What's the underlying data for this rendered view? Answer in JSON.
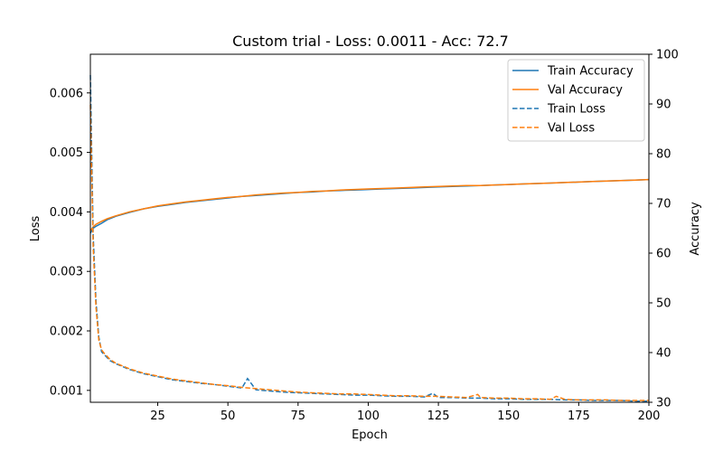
{
  "chart_data": {
    "type": "line",
    "title": "Custom trial - Loss: 0.0011 - Acc: 72.7",
    "xlabel": "Epoch",
    "ylabel_left": "Loss",
    "ylabel_right": "Accuracy",
    "xlim": [
      1,
      200
    ],
    "ylim_left": [
      0.0008,
      0.00665
    ],
    "ylim_right": [
      30,
      100
    ],
    "xticks": [
      25,
      50,
      75,
      100,
      125,
      150,
      175,
      200
    ],
    "yticks_left": [
      0.001,
      0.002,
      0.003,
      0.004,
      0.005,
      0.006
    ],
    "ytick_labels_left": [
      "0.001",
      "0.002",
      "0.003",
      "0.004",
      "0.005",
      "0.006"
    ],
    "yticks_right": [
      30,
      40,
      50,
      60,
      70,
      80,
      90,
      100
    ],
    "grid": false,
    "legend_position": "top-right",
    "colors": {
      "blue": "#1f77b4",
      "orange": "#ff7f0e"
    },
    "series": [
      {
        "name": "Train Accuracy",
        "axis": "right",
        "color": "#1f77b4",
        "style": "solid",
        "x": [
          1,
          2,
          3,
          5,
          7,
          10,
          15,
          20,
          25,
          30,
          35,
          40,
          45,
          50,
          55,
          60,
          65,
          70,
          75,
          80,
          85,
          90,
          95,
          100,
          105,
          110,
          115,
          120,
          125,
          130,
          135,
          140,
          145,
          150,
          155,
          160,
          165,
          170,
          175,
          180,
          185,
          190,
          195,
          200
        ],
        "y": [
          64.0,
          65.0,
          65.4,
          66.0,
          66.7,
          67.4,
          68.2,
          68.9,
          69.4,
          69.8,
          70.2,
          70.5,
          70.8,
          71.1,
          71.4,
          71.6,
          71.8,
          72.0,
          72.2,
          72.3,
          72.5,
          72.6,
          72.7,
          72.8,
          72.9,
          73.0,
          73.1,
          73.2,
          73.3,
          73.4,
          73.5,
          73.6,
          73.7,
          73.8,
          73.9,
          74.0,
          74.1,
          74.2,
          74.3,
          74.4,
          74.5,
          74.6,
          74.7,
          74.8
        ]
      },
      {
        "name": "Val Accuracy",
        "axis": "right",
        "color": "#ff7f0e",
        "style": "solid",
        "x": [
          1,
          2,
          3,
          5,
          7,
          10,
          15,
          20,
          25,
          30,
          35,
          40,
          45,
          50,
          55,
          60,
          65,
          70,
          75,
          80,
          85,
          90,
          95,
          100,
          105,
          110,
          115,
          120,
          125,
          130,
          135,
          140,
          145,
          150,
          155,
          160,
          165,
          170,
          175,
          180,
          185,
          190,
          195,
          200
        ],
        "y": [
          64.5,
          65.3,
          65.8,
          66.4,
          66.9,
          67.5,
          68.3,
          68.9,
          69.5,
          69.9,
          70.3,
          70.6,
          70.9,
          71.2,
          71.4,
          71.7,
          71.9,
          72.1,
          72.2,
          72.4,
          72.5,
          72.7,
          72.8,
          72.9,
          73.0,
          73.1,
          73.2,
          73.3,
          73.4,
          73.5,
          73.6,
          73.6,
          73.7,
          73.8,
          73.9,
          74.0,
          74.1,
          74.2,
          74.3,
          74.4,
          74.5,
          74.6,
          74.7,
          74.8
        ]
      },
      {
        "name": "Train Loss",
        "axis": "left",
        "color": "#1f77b4",
        "style": "dashed",
        "x": [
          1,
          2,
          3,
          4,
          5,
          6,
          8,
          10,
          15,
          20,
          25,
          30,
          35,
          40,
          45,
          50,
          55,
          57,
          60,
          65,
          70,
          75,
          80,
          85,
          90,
          95,
          100,
          105,
          110,
          115,
          120,
          123,
          125,
          130,
          135,
          140,
          145,
          150,
          155,
          160,
          165,
          170,
          175,
          180,
          185,
          190,
          195,
          200
        ],
        "y": [
          0.0063,
          0.0036,
          0.0025,
          0.0019,
          0.00165,
          0.0016,
          0.0015,
          0.00145,
          0.00135,
          0.00128,
          0.00123,
          0.00118,
          0.00115,
          0.00112,
          0.0011,
          0.00107,
          0.00104,
          0.0012,
          0.00101,
          0.00099,
          0.00097,
          0.00096,
          0.00095,
          0.00094,
          0.00093,
          0.00092,
          0.00092,
          0.00091,
          0.0009,
          0.0009,
          0.00089,
          0.00095,
          0.00088,
          0.00088,
          0.00087,
          0.00087,
          0.00086,
          0.00086,
          0.00085,
          0.00085,
          0.00085,
          0.00084,
          0.00084,
          0.00083,
          0.00083,
          0.00083,
          0.00082,
          0.00082
        ]
      },
      {
        "name": "Val Loss",
        "axis": "left",
        "color": "#ff7f0e",
        "style": "dashed",
        "x": [
          1,
          2,
          3,
          4,
          5,
          6,
          8,
          10,
          15,
          20,
          25,
          30,
          35,
          40,
          45,
          50,
          55,
          60,
          65,
          70,
          75,
          80,
          85,
          90,
          95,
          100,
          105,
          110,
          115,
          120,
          125,
          130,
          135,
          139,
          140,
          145,
          150,
          155,
          160,
          165,
          167,
          170,
          175,
          180,
          185,
          190,
          195,
          200
        ],
        "y": [
          0.0058,
          0.0034,
          0.0024,
          0.00185,
          0.00168,
          0.00162,
          0.00152,
          0.00146,
          0.00136,
          0.00129,
          0.00124,
          0.00119,
          0.00116,
          0.00113,
          0.0011,
          0.00108,
          0.00105,
          0.00103,
          0.00101,
          0.00099,
          0.00097,
          0.00096,
          0.00095,
          0.00094,
          0.00094,
          0.00093,
          0.00092,
          0.00091,
          0.00091,
          0.0009,
          0.0009,
          0.00089,
          0.00088,
          0.00093,
          0.00088,
          0.00087,
          0.00087,
          0.00086,
          0.00086,
          0.00085,
          0.0009,
          0.00085,
          0.00084,
          0.00084,
          0.00084,
          0.00083,
          0.00083,
          0.00083
        ]
      }
    ]
  }
}
